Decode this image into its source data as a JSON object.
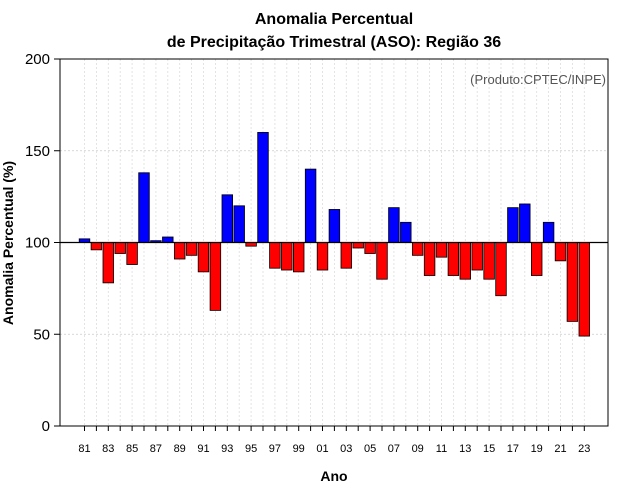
{
  "chart_data": {
    "type": "bar",
    "title_line1": "Anomalia Percentual",
    "title_line2": "de Precipitação Trimestral (ASO): Região 36",
    "credit": "(Produto:CPTEC/INPE)",
    "xlabel": "Ano",
    "ylabel": "Anomalia Percentual (%)",
    "ylim": [
      0,
      200
    ],
    "yticks": [
      0,
      50,
      100,
      150,
      200
    ],
    "baseline": 100,
    "grid": true,
    "colors": {
      "above": "#0000ff",
      "below": "#ff0000",
      "baseline": "#000000"
    },
    "categories": [
      1981,
      1982,
      1983,
      1984,
      1985,
      1986,
      1987,
      1988,
      1989,
      1990,
      1991,
      1992,
      1993,
      1994,
      1995,
      1996,
      1997,
      1998,
      1999,
      2000,
      2001,
      2002,
      2003,
      2004,
      2005,
      2006,
      2007,
      2008,
      2009,
      2010,
      2011,
      2012,
      2013,
      2014,
      2015,
      2016,
      2017,
      2018,
      2019,
      2020,
      2021,
      2022,
      2023
    ],
    "values": [
      102,
      96,
      78,
      94,
      88,
      138,
      101,
      103,
      91,
      93,
      84,
      63,
      126,
      120,
      98,
      160,
      86,
      85,
      84,
      140,
      85,
      118,
      86,
      97,
      94,
      80,
      119,
      111,
      93,
      82,
      92,
      82,
      80,
      85,
      80,
      71,
      119,
      121,
      82,
      111,
      90,
      57,
      49
    ],
    "xtick_labels": [
      "81",
      "83",
      "85",
      "87",
      "89",
      "91",
      "93",
      "95",
      "97",
      "99",
      "01",
      "03",
      "05",
      "07",
      "09",
      "11",
      "13",
      "15",
      "17",
      "19",
      "21",
      "23"
    ]
  }
}
